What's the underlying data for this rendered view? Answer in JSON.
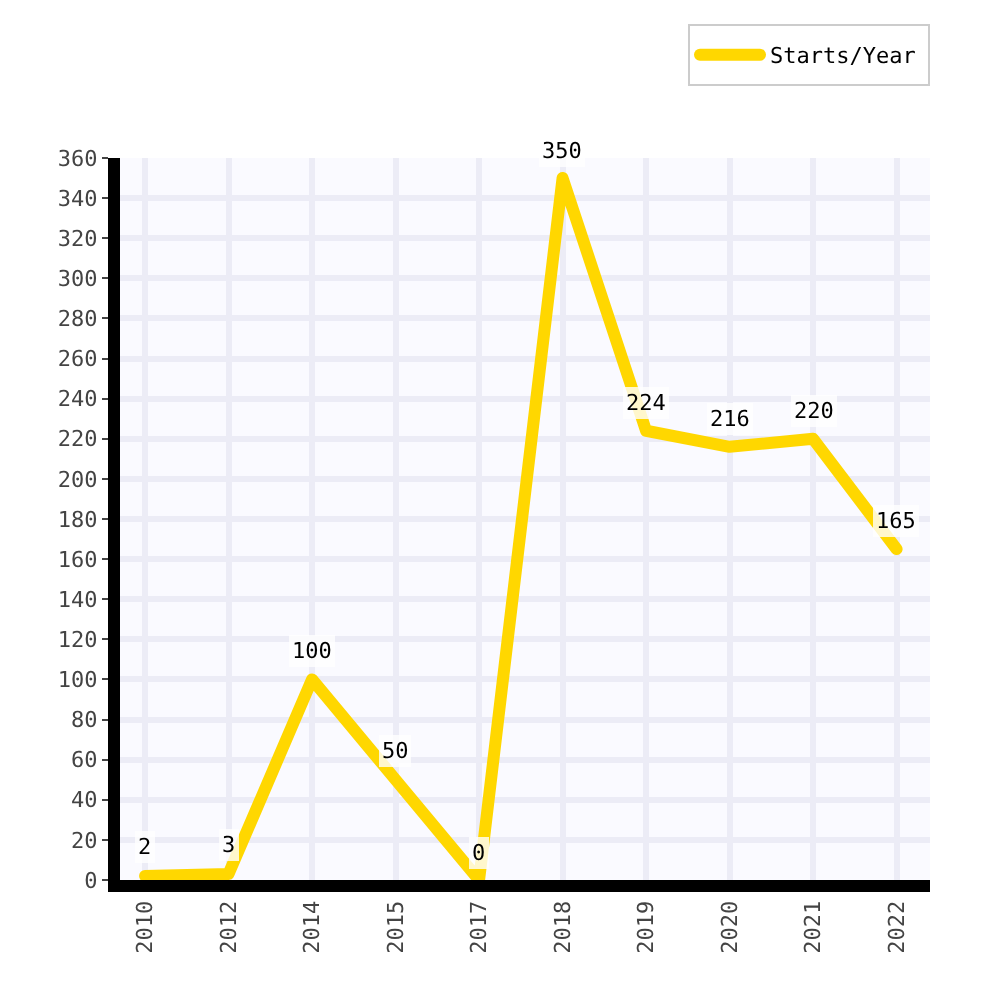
{
  "chart_data": {
    "type": "line",
    "categories": [
      "2010",
      "2012",
      "2014",
      "2015",
      "2017",
      "2018",
      "2019",
      "2020",
      "2021",
      "2022"
    ],
    "series": [
      {
        "name": "Starts/Year",
        "color": "#ffd700",
        "values": [
          2,
          3,
          100,
          50,
          0,
          350,
          224,
          216,
          220,
          165
        ]
      }
    ],
    "ylim": [
      0,
      360
    ],
    "yticks": [
      0,
      20,
      40,
      60,
      80,
      100,
      120,
      140,
      160,
      180,
      200,
      220,
      240,
      260,
      280,
      300,
      320,
      340,
      360
    ],
    "grid": true,
    "legend": "top right",
    "marker": "none",
    "line_style": "solid",
    "data_labels": true
  }
}
